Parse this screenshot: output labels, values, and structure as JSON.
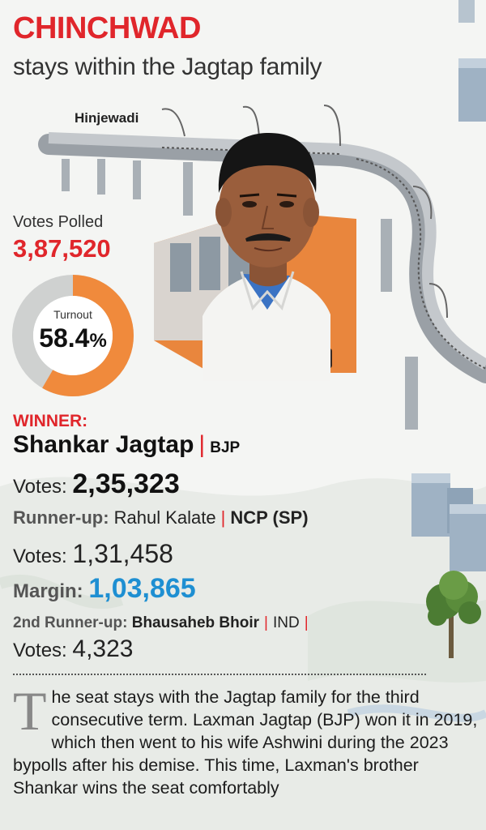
{
  "header": {
    "title": "CHINCHWAD",
    "subtitle": "stays within the Jagtap family"
  },
  "map": {
    "place_label": "Hinjewadi"
  },
  "stats": {
    "votes_polled_label": "Votes Polled",
    "votes_polled": "3,87,520",
    "turnout_label": "Turnout",
    "turnout_value": "58.4",
    "turnout_unit": "%",
    "turnout_fraction": 0.584
  },
  "result": {
    "winner_label": "WINNER:",
    "winner_name": "Shankar Jagtap",
    "separator": "|",
    "winner_party": "BJP",
    "votes_label": "Votes:",
    "winner_votes": "2,35,323",
    "runner_up_label": "Runner-up:",
    "runner_up_name": "Rahul Kalate",
    "runner_up_party": "NCP (SP)",
    "runner_up_votes": "1,31,458",
    "margin_label": "Margin:",
    "margin_value": "1,03,865",
    "second_runner_up_label": "2nd Runner-up:",
    "second_runner_up_name": "Bhausaheb Bhoir",
    "second_runner_up_party": "IND",
    "second_runner_up_votes": "4,323"
  },
  "story": {
    "dropcap": "T",
    "text": "he seat stays with the Jagtap family for the third consecutive term. Laxman Jagtap (BJP) won it in 2019, which then went to his wife Ashwini during the 2023 bypolls after his demise. This time, Laxman's brother Shankar wins the seat comfortably"
  },
  "colors": {
    "accent_red": "#e0262b",
    "turnout_orange": "#f08a3c",
    "donut_grey": "#cfd1d0",
    "margin_blue": "#1e8fd2"
  },
  "icons": {
    "tree": "tree-icon",
    "buildings": "building-icon",
    "metro": "metro-train-icon"
  }
}
